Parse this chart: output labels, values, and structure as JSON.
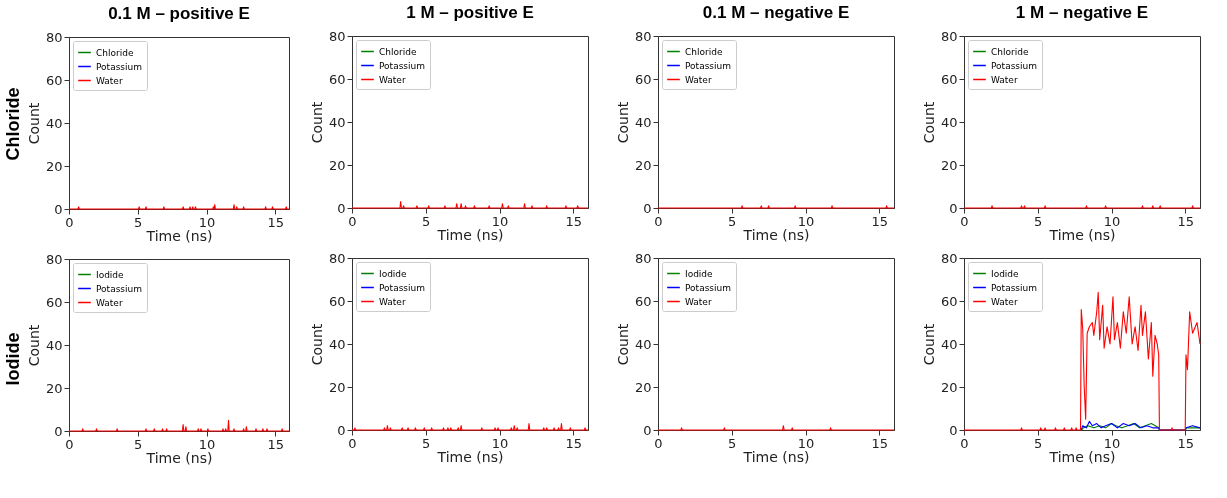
{
  "chart_data": [
    {
      "type": "line",
      "title": "0.1 M – positive E",
      "annotations": [
        "Chloride"
      ],
      "xlabel": "Time (ns)",
      "ylabel": "Count",
      "xlim": [
        0,
        16
      ],
      "xticks": [
        0,
        5,
        10,
        15
      ],
      "ylim": [
        0,
        80
      ],
      "yticks": [
        0,
        20,
        40,
        60,
        80
      ],
      "legend": "top left",
      "grid": false,
      "series": [
        {
          "name": "Chloride",
          "color": "#008000"
        },
        {
          "name": "Potassium",
          "color": "#0000ff"
        },
        {
          "name": "Water",
          "color": "#ff0000",
          "x": [
            0,
            0.65,
            0.7,
            0.75,
            5.05,
            5.1,
            5.15,
            5.55,
            5.6,
            5.65,
            6.85,
            6.9,
            6.95,
            8.25,
            8.3,
            8.35,
            8.75,
            8.8,
            8.85,
            8.95,
            9.0,
            9.05,
            9.15,
            9.2,
            9.25,
            10.45,
            10.5,
            10.55,
            10.6,
            10.65,
            11.95,
            12.0,
            12.05,
            12.15,
            12.2,
            12.25,
            12.65,
            12.7,
            12.75,
            14.25,
            14.3,
            14.35,
            14.75,
            14.8,
            14.85,
            15.75,
            15.8,
            15.85,
            16
          ],
          "values": [
            0,
            0,
            1,
            0,
            0,
            1,
            0,
            0,
            1,
            0,
            0,
            1,
            0,
            0,
            1,
            0,
            0,
            1,
            0,
            0,
            1,
            0,
            0,
            1,
            0,
            0,
            1,
            0,
            2,
            0,
            0,
            2,
            0,
            0,
            1,
            0,
            0,
            1,
            0,
            0,
            1,
            0,
            0,
            1,
            0,
            0,
            1,
            0,
            0
          ]
        }
      ]
    },
    {
      "type": "line",
      "title": "1 M – positive E",
      "xlabel": "Time (ns)",
      "ylabel": "Count",
      "xlim": [
        0,
        16
      ],
      "xticks": [
        0,
        5,
        10,
        15
      ],
      "ylim": [
        0,
        80
      ],
      "yticks": [
        0,
        20,
        40,
        60,
        80
      ],
      "legend": "top left",
      "grid": false,
      "series": [
        {
          "name": "Chloride",
          "color": "#008000"
        },
        {
          "name": "Potassium",
          "color": "#0000ff"
        },
        {
          "name": "Water",
          "color": "#ff0000",
          "x": [
            0,
            3.25,
            3.3,
            3.35,
            3.45,
            3.5,
            3.55,
            4.35,
            4.4,
            4.45,
            5.15,
            5.2,
            5.25,
            6.25,
            6.3,
            6.35,
            7.05,
            7.1,
            7.15,
            7.35,
            7.4,
            7.45,
            7.65,
            7.7,
            7.75,
            8.25,
            8.3,
            8.35,
            9.25,
            9.3,
            9.35,
            10.15,
            10.2,
            10.25,
            10.55,
            10.6,
            10.65,
            11.65,
            11.7,
            11.75,
            12.15,
            12.2,
            12.25,
            13.15,
            13.2,
            13.25,
            14.45,
            14.5,
            14.55,
            15.25,
            15.3,
            15.35,
            16
          ],
          "values": [
            0,
            0,
            3,
            0,
            0,
            1,
            0,
            0,
            1,
            0,
            0,
            1,
            0,
            0,
            1,
            0,
            0,
            2,
            0,
            0,
            2,
            0,
            0,
            1,
            0,
            0,
            1,
            0,
            0,
            1,
            0,
            0,
            2,
            0,
            0,
            1,
            0,
            0,
            2,
            0,
            0,
            1,
            0,
            0,
            1,
            0,
            0,
            1,
            0,
            0,
            1,
            0,
            0
          ]
        }
      ]
    },
    {
      "type": "line",
      "title": "0.1 M – negative E",
      "xlabel": "Time (ns)",
      "ylabel": "Count",
      "xlim": [
        0,
        16
      ],
      "xticks": [
        0,
        5,
        10,
        15
      ],
      "ylim": [
        0,
        80
      ],
      "yticks": [
        0,
        20,
        40,
        60,
        80
      ],
      "legend": "top left",
      "grid": false,
      "series": [
        {
          "name": "Chloride",
          "color": "#008000"
        },
        {
          "name": "Potassium",
          "color": "#0000ff"
        },
        {
          "name": "Water",
          "color": "#ff0000",
          "x": [
            0,
            5.65,
            5.7,
            5.75,
            6.95,
            7.0,
            7.05,
            7.45,
            7.5,
            7.55,
            9.25,
            9.3,
            9.35,
            11.75,
            11.8,
            11.85,
            15.45,
            15.5,
            15.55,
            16
          ],
          "values": [
            0,
            0,
            1,
            0,
            0,
            1,
            0,
            0,
            1,
            0,
            0,
            1,
            0,
            0,
            1,
            0,
            0,
            1,
            0,
            0
          ]
        }
      ]
    },
    {
      "type": "line",
      "title": "1 M – negative E",
      "xlabel": "Time (ns)",
      "ylabel": "Count",
      "xlim": [
        0,
        16
      ],
      "xticks": [
        0,
        5,
        10,
        15
      ],
      "ylim": [
        0,
        80
      ],
      "yticks": [
        0,
        20,
        40,
        60,
        80
      ],
      "legend": "top left",
      "grid": false,
      "series": [
        {
          "name": "Chloride",
          "color": "#008000"
        },
        {
          "name": "Potassium",
          "color": "#0000ff"
        },
        {
          "name": "Water",
          "color": "#ff0000",
          "x": [
            0,
            1.85,
            1.9,
            1.95,
            3.85,
            3.9,
            3.95,
            4.05,
            4.1,
            4.15,
            5.45,
            5.5,
            5.55,
            8.25,
            8.3,
            8.35,
            9.55,
            9.6,
            9.65,
            12.05,
            12.1,
            12.15,
            12.75,
            12.8,
            12.85,
            13.25,
            13.3,
            13.35,
            15.45,
            15.5,
            15.55,
            16
          ],
          "values": [
            0,
            0,
            1,
            0,
            0,
            1,
            0,
            0,
            1,
            0,
            0,
            1,
            0,
            0,
            1,
            0,
            0,
            1,
            0,
            0,
            1,
            0,
            0,
            1,
            0,
            0,
            1,
            0,
            0,
            1,
            0,
            0
          ]
        }
      ]
    },
    {
      "type": "line",
      "annotations": [
        "Iodide"
      ],
      "xlabel": "Time (ns)",
      "ylabel": "Count",
      "xlim": [
        0,
        16
      ],
      "xticks": [
        0,
        5,
        10,
        15
      ],
      "ylim": [
        0,
        80
      ],
      "yticks": [
        0,
        20,
        40,
        60,
        80
      ],
      "legend": "top left",
      "grid": false,
      "series": [
        {
          "name": "Iodide",
          "color": "#008000"
        },
        {
          "name": "Potassium",
          "color": "#0000ff"
        },
        {
          "name": "Water",
          "color": "#ff0000",
          "x": [
            0,
            0.95,
            1.0,
            1.05,
            1.95,
            2.0,
            2.05,
            3.45,
            3.5,
            3.55,
            5.55,
            5.6,
            5.65,
            6.15,
            6.2,
            6.25,
            6.75,
            6.8,
            6.85,
            7.05,
            7.1,
            7.15,
            8.25,
            8.3,
            8.35,
            8.45,
            8.5,
            8.55,
            9.35,
            9.4,
            9.45,
            9.55,
            9.6,
            9.65,
            10.05,
            10.1,
            10.15,
            11.15,
            11.2,
            11.25,
            11.35,
            11.4,
            11.45,
            11.55,
            11.6,
            11.65,
            11.95,
            12.0,
            12.05,
            12.65,
            12.7,
            12.75,
            12.85,
            12.9,
            12.95,
            13.55,
            13.6,
            13.65,
            14.05,
            14.1,
            14.15,
            14.35,
            14.4,
            14.45,
            15.45,
            15.5,
            15.55,
            16
          ],
          "values": [
            0,
            0,
            1,
            0,
            0,
            1,
            0,
            0,
            1,
            0,
            0,
            1,
            0,
            0,
            1,
            0,
            0,
            1,
            0,
            0,
            1,
            0,
            0,
            3,
            0,
            0,
            2,
            0,
            0,
            1,
            0,
            0,
            1,
            0,
            0,
            1,
            0,
            0,
            1,
            0,
            0,
            1,
            0,
            0,
            5,
            0,
            0,
            1,
            0,
            0,
            1,
            0,
            0,
            2,
            0,
            0,
            1,
            0,
            0,
            1,
            0,
            0,
            1,
            0,
            0,
            1,
            0,
            0
          ]
        }
      ]
    },
    {
      "type": "line",
      "xlabel": "Time (ns)",
      "ylabel": "Count",
      "xlim": [
        0,
        16
      ],
      "xticks": [
        0,
        5,
        10,
        15
      ],
      "ylim": [
        0,
        80
      ],
      "yticks": [
        0,
        20,
        40,
        60,
        80
      ],
      "legend": "top left",
      "grid": false,
      "series": [
        {
          "name": "Iodide",
          "color": "#008000"
        },
        {
          "name": "Potassium",
          "color": "#0000ff"
        },
        {
          "name": "Water",
          "color": "#ff0000",
          "x": [
            0,
            0.15,
            0.2,
            0.25,
            2.15,
            2.2,
            2.25,
            2.35,
            2.4,
            2.45,
            2.55,
            2.6,
            2.65,
            3.35,
            3.4,
            3.45,
            3.75,
            3.8,
            3.85,
            4.25,
            4.3,
            4.35,
            4.85,
            4.9,
            4.95,
            5.35,
            5.4,
            5.45,
            6.15,
            6.2,
            6.25,
            6.45,
            6.5,
            6.55,
            6.65,
            6.7,
            6.75,
            7.15,
            7.2,
            7.25,
            7.35,
            7.4,
            7.45,
            8.75,
            8.8,
            8.85,
            9.65,
            9.7,
            9.75,
            9.85,
            9.9,
            9.95,
            10.75,
            10.8,
            10.85,
            10.95,
            11.0,
            11.05,
            11.15,
            11.2,
            11.25,
            11.95,
            12.0,
            12.05,
            12.95,
            13.0,
            13.05,
            13.15,
            13.2,
            13.25,
            13.65,
            13.7,
            13.75,
            13.95,
            14.0,
            14.05,
            14.15,
            14.2,
            14.25,
            14.75,
            14.8,
            14.85,
            15.75,
            15.8,
            15.85,
            16
          ],
          "values": [
            0,
            0,
            1,
            0,
            0,
            1,
            0,
            0,
            2,
            0,
            0,
            1,
            0,
            0,
            1,
            0,
            0,
            1,
            0,
            0,
            1,
            0,
            0,
            1,
            0,
            0,
            1,
            0,
            0,
            1,
            0,
            0,
            1,
            0,
            0,
            1,
            0,
            0,
            1,
            0,
            0,
            2,
            0,
            0,
            1,
            0,
            0,
            1,
            0,
            0,
            1,
            0,
            0,
            1,
            0,
            0,
            2,
            0,
            0,
            1,
            0,
            0,
            3,
            0,
            0,
            1,
            0,
            0,
            1,
            0,
            0,
            1,
            0,
            0,
            1,
            0,
            0,
            3,
            0,
            0,
            1,
            0,
            0,
            1,
            0,
            0
          ]
        }
      ]
    },
    {
      "type": "line",
      "xlabel": "Time (ns)",
      "ylabel": "Count",
      "xlim": [
        0,
        16
      ],
      "xticks": [
        0,
        5,
        10,
        15
      ],
      "ylim": [
        0,
        80
      ],
      "yticks": [
        0,
        20,
        40,
        60,
        80
      ],
      "legend": "top left",
      "grid": false,
      "series": [
        {
          "name": "Iodide",
          "color": "#008000"
        },
        {
          "name": "Potassium",
          "color": "#0000ff"
        },
        {
          "name": "Water",
          "color": "#ff0000",
          "x": [
            0,
            1.55,
            1.6,
            1.65,
            4.45,
            4.5,
            4.55,
            8.45,
            8.5,
            8.55,
            9.05,
            9.1,
            9.15,
            11.65,
            11.7,
            11.75,
            16
          ],
          "values": [
            0,
            0,
            1,
            0,
            0,
            1,
            0,
            0,
            2,
            0,
            0,
            1,
            0,
            0,
            1,
            0,
            0
          ]
        }
      ]
    },
    {
      "type": "line",
      "xlabel": "Time (ns)",
      "ylabel": "Count",
      "xlim": [
        0,
        16
      ],
      "xticks": [
        0,
        5,
        10,
        15
      ],
      "ylim": [
        0,
        80
      ],
      "yticks": [
        0,
        20,
        40,
        60,
        80
      ],
      "legend": "top left",
      "grid": false,
      "series": [
        {
          "name": "Iodide",
          "color": "#008000",
          "x": [
            7.95,
            8.1,
            8.4,
            8.8,
            9.2,
            9.6,
            10.0,
            10.3,
            10.7,
            11.1,
            11.5,
            11.9,
            12.3,
            12.7,
            13.2,
            13.25,
            15.0,
            15.1,
            16
          ],
          "values": [
            0,
            1,
            2,
            1,
            2,
            1,
            3,
            2,
            1,
            2,
            3,
            1,
            2,
            3,
            1,
            0,
            0,
            1,
            1
          ]
        },
        {
          "name": "Potassium",
          "color": "#0000ff",
          "x": [
            7.95,
            8.05,
            8.3,
            8.5,
            8.7,
            9.0,
            9.3,
            9.6,
            10.0,
            10.4,
            10.8,
            11.2,
            11.6,
            12.0,
            12.4,
            12.8,
            13.2,
            13.25,
            15.0,
            15.05,
            15.5,
            16
          ],
          "values": [
            0,
            2,
            1,
            4,
            2,
            3,
            1,
            2,
            3,
            1,
            3,
            2,
            3,
            1,
            2,
            1,
            1,
            0,
            0,
            1,
            2,
            1
          ]
        },
        {
          "name": "Water",
          "color": "#ff0000",
          "x": [
            0,
            3.85,
            3.9,
            3.95,
            5.15,
            5.2,
            5.25,
            5.45,
            5.5,
            5.55,
            6.15,
            6.2,
            6.25,
            6.75,
            6.8,
            6.85,
            7.25,
            7.3,
            7.35,
            7.55,
            7.6,
            7.65,
            7.9,
            7.95,
            8.05,
            8.15,
            8.25,
            8.35,
            8.5,
            8.7,
            8.8,
            9.0,
            9.1,
            9.2,
            9.4,
            9.5,
            9.7,
            9.9,
            10.1,
            10.2,
            10.4,
            10.6,
            10.8,
            11.0,
            11.2,
            11.4,
            11.6,
            11.8,
            12.0,
            12.1,
            12.3,
            12.5,
            12.7,
            12.8,
            12.95,
            13.1,
            13.2,
            13.25,
            14.05,
            14.1,
            14.15,
            15.0,
            15.05,
            15.15,
            15.3,
            15.5,
            15.8,
            16
          ],
          "values": [
            0,
            0,
            1,
            0,
            0,
            1,
            0,
            0,
            1,
            0,
            0,
            1,
            0,
            0,
            1,
            0,
            0,
            1,
            0,
            0,
            1,
            0,
            0,
            56,
            47,
            20,
            5,
            45,
            48,
            50,
            44,
            55,
            64,
            42,
            58,
            38,
            48,
            40,
            62,
            42,
            50,
            38,
            55,
            45,
            62,
            40,
            48,
            37,
            58,
            44,
            55,
            33,
            50,
            25,
            44,
            40,
            35,
            0,
            0,
            1,
            0,
            0,
            35,
            28,
            55,
            45,
            50,
            40
          ]
        }
      ]
    }
  ]
}
